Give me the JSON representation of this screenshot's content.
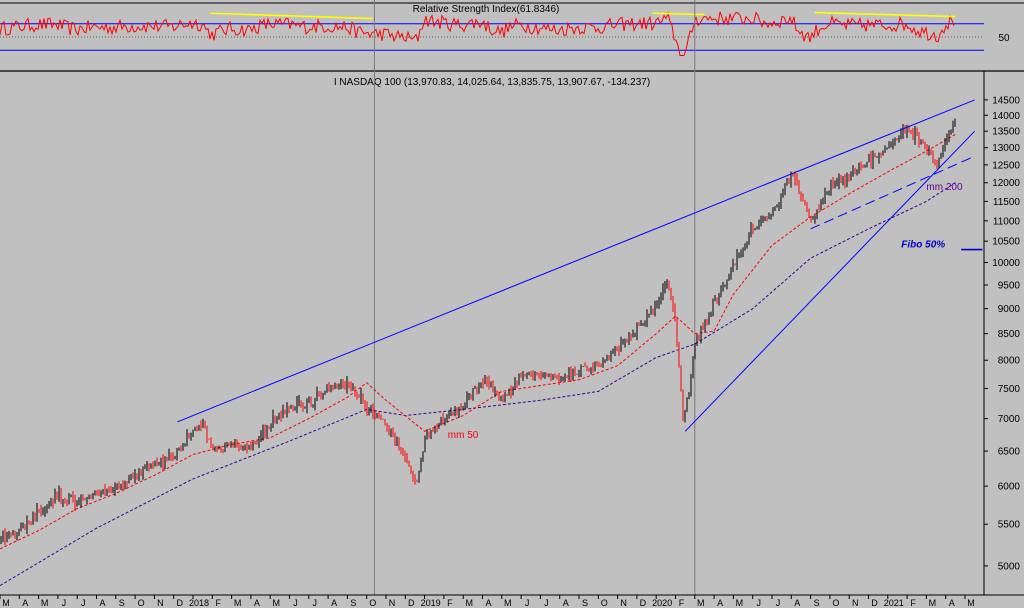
{
  "chart_data": [
    {
      "type": "line",
      "title": "Relative Strength Index(61.8346)",
      "tick_labels": [
        "50"
      ],
      "ylim": [
        0,
        100
      ],
      "guide_levels": [
        30,
        50,
        70
      ],
      "series": [],
      "annotations": [],
      "line_color": "#ff0000",
      "guide_color": "#0000ff",
      "trendline_color": "#ffff00"
    },
    {
      "type": "candlestick",
      "title": "I NASDAQ 100 (13,970.83, 14,025.64, 13,835.75, 13,907.67, -134.237)",
      "scale": "log",
      "ylim": [
        4700,
        14900
      ],
      "y_ticks": [
        5000,
        5500,
        6000,
        6500,
        7000,
        7500,
        8000,
        8500,
        9000,
        9500,
        10000,
        10500,
        11000,
        11500,
        12000,
        12500,
        13000,
        13500,
        14000,
        14500
      ],
      "x_labels": [
        "M",
        "A",
        "M",
        "J",
        "J",
        "A",
        "S",
        "O",
        "N",
        "D",
        "2018",
        "F",
        "M",
        "A",
        "M",
        "J",
        "J",
        "A",
        "S",
        "O",
        "N",
        "D",
        "2019",
        "F",
        "M",
        "A",
        "M",
        "J",
        "J",
        "A",
        "S",
        "O",
        "N",
        "D",
        "2020",
        "F",
        "M",
        "A",
        "M",
        "J",
        "J",
        "A",
        "S",
        "O",
        "N",
        "D",
        "2021",
        "F",
        "M",
        "A",
        "M"
      ],
      "price_path": [
        [
          0,
          5300
        ],
        [
          1,
          5420
        ],
        [
          2,
          5650
        ],
        [
          3,
          5850
        ],
        [
          4,
          5780
        ],
        [
          5,
          5900
        ],
        [
          6,
          5980
        ],
        [
          7,
          6150
        ],
        [
          8,
          6300
        ],
        [
          9,
          6420
        ],
        [
          10,
          6800
        ],
        [
          10.5,
          6900
        ],
        [
          11,
          6500
        ],
        [
          12,
          6600
        ],
        [
          13,
          6550
        ],
        [
          14,
          6900
        ],
        [
          15,
          7150
        ],
        [
          16,
          7250
        ],
        [
          17,
          7450
        ],
        [
          18,
          7550
        ],
        [
          19,
          7200
        ],
        [
          20,
          6900
        ],
        [
          21,
          6400
        ],
        [
          21.6,
          6000
        ],
        [
          22,
          6700
        ],
        [
          23,
          7000
        ],
        [
          24,
          7200
        ],
        [
          25,
          7650
        ],
        [
          26,
          7300
        ],
        [
          27,
          7700
        ],
        [
          28,
          7750
        ],
        [
          29,
          7650
        ],
        [
          30,
          7800
        ],
        [
          31,
          7900
        ],
        [
          32,
          8200
        ],
        [
          33,
          8600
        ],
        [
          34,
          9000
        ],
        [
          34.6,
          9600
        ],
        [
          35,
          8700
        ],
        [
          35.4,
          7000
        ],
        [
          35.7,
          7400
        ],
        [
          36,
          8300
        ],
        [
          37,
          9100
        ],
        [
          38,
          9900
        ],
        [
          39,
          10800
        ],
        [
          40,
          11200
        ],
        [
          41,
          12300
        ],
        [
          41.5,
          11600
        ],
        [
          42,
          11000
        ],
        [
          43,
          11900
        ],
        [
          44,
          12200
        ],
        [
          45,
          12600
        ],
        [
          46,
          13000
        ],
        [
          47,
          13600
        ],
        [
          48,
          13000
        ],
        [
          48.6,
          12500
        ],
        [
          49,
          13200
        ],
        [
          49.5,
          13900
        ]
      ],
      "series": [
        {
          "name": "mm 50",
          "values": [
            [
              0,
              5200
            ],
            [
              2,
              5420
            ],
            [
              4,
              5700
            ],
            [
              6,
              5900
            ],
            [
              8,
              6150
            ],
            [
              10,
              6450
            ],
            [
              12,
              6600
            ],
            [
              14,
              6700
            ],
            [
              16,
              7000
            ],
            [
              18,
              7350
            ],
            [
              19,
              7600
            ],
            [
              20,
              7300
            ],
            [
              22,
              6800
            ],
            [
              24,
              7050
            ],
            [
              26,
              7450
            ],
            [
              28,
              7550
            ],
            [
              30,
              7650
            ],
            [
              32,
              7900
            ],
            [
              34,
              8500
            ],
            [
              35,
              8850
            ],
            [
              36,
              8500
            ],
            [
              37,
              8550
            ],
            [
              38,
              9300
            ],
            [
              40,
              10400
            ],
            [
              42,
              11100
            ],
            [
              44,
              11700
            ],
            [
              46,
              12300
            ],
            [
              48,
              12900
            ],
            [
              49.5,
              13400
            ]
          ]
        },
        {
          "name": "mm 200",
          "values": [
            [
              0,
              4780
            ],
            [
              5,
              5450
            ],
            [
              10,
              6100
            ],
            [
              15,
              6650
            ],
            [
              19,
              7150
            ],
            [
              21,
              7050
            ],
            [
              24,
              7150
            ],
            [
              28,
              7300
            ],
            [
              31,
              7450
            ],
            [
              34,
              8050
            ],
            [
              36,
              8300
            ],
            [
              39,
              9000
            ],
            [
              42,
              10100
            ],
            [
              45,
              10800
            ],
            [
              48,
              11500
            ],
            [
              49.5,
              12000
            ]
          ]
        }
      ],
      "annotations": [
        "mm 50",
        "mm 200",
        "Fibo 50%"
      ],
      "fibo_level": 10300,
      "trendlines": [
        {
          "from": [
            9.2,
            6950
          ],
          "to": [
            50.5,
            14500
          ]
        },
        {
          "from": [
            35.5,
            6800
          ],
          "to": [
            50.5,
            13500
          ]
        },
        {
          "from": [
            42,
            10800
          ],
          "to": [
            50.3,
            12700
          ]
        }
      ],
      "colors": {
        "up": "#000000",
        "down": "#ff0000",
        "ma50": "#ff0000",
        "ma200": "#330099",
        "trend": "#0000ff",
        "annot_mm200": "#660099",
        "fibo": "#0000cc"
      },
      "grid": false
    }
  ]
}
